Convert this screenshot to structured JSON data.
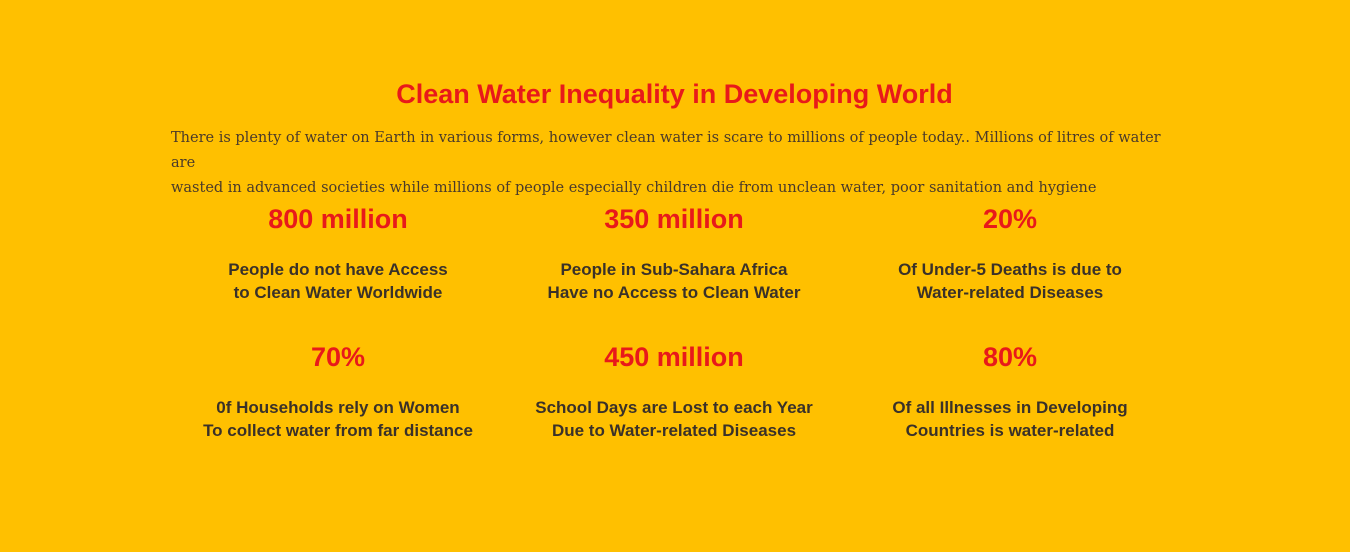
{
  "page": {
    "title": "Clean Water Inequality in Developing World",
    "intro_line1": "There is plenty of water on Earth in various forms, however clean water is scare to millions of people today.. Millions of litres of water are",
    "intro_line2": "wasted in advanced societies while millions of people especially children die from unclean water, poor sanitation and hygiene"
  },
  "colors": {
    "background": "#FFC000",
    "accent": "#E8191A",
    "text": "#3A3129"
  },
  "stats": [
    {
      "value": "800 million",
      "line1": "People do not have Access",
      "line2": "to Clean Water Worldwide"
    },
    {
      "value": "350 million",
      "line1": "People in Sub-Sahara Africa",
      "line2": "Have no Access to Clean Water"
    },
    {
      "value": "20%",
      "line1": "Of Under-5 Deaths is due to",
      "line2": "Water-related Diseases"
    },
    {
      "value": "70%",
      "line1": "0f Households rely on Women",
      "line2": "To collect water from far distance"
    },
    {
      "value": "450 million",
      "line1": "School Days are Lost to each Year",
      "line2": "Due to Water-related Diseases"
    },
    {
      "value": "80%",
      "line1": "Of all Illnesses in Developing",
      "line2": "Countries is water-related"
    }
  ]
}
